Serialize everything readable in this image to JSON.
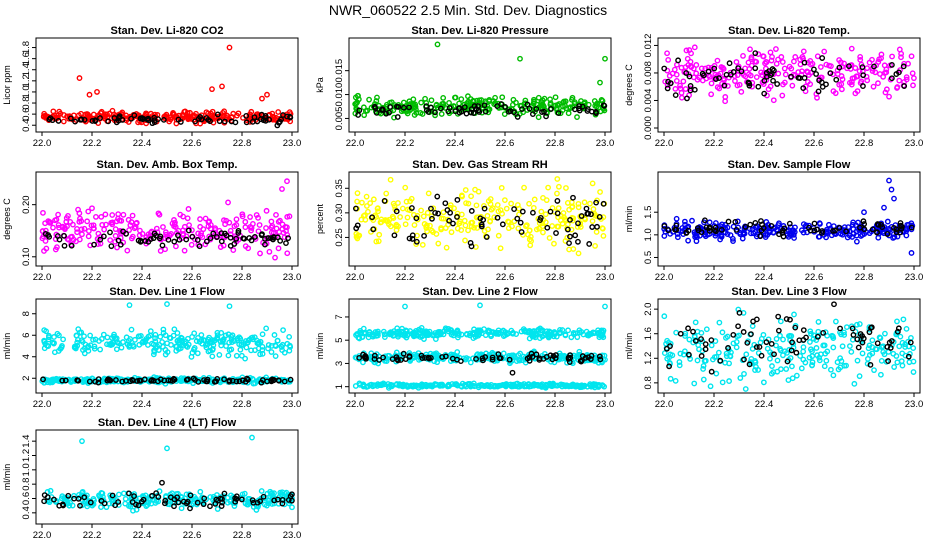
{
  "figure": {
    "title": "NWR_060522  2.5 Min. Std. Dev. Diagnostics"
  },
  "chart_data": [
    {
      "type": "scatter",
      "title": "Stan. Dev. Li-820 CO2",
      "xlabel": "",
      "ylabel": "Licor ppm",
      "xlim": [
        22.0,
        23.0
      ],
      "ylim": [
        0.35,
        1.9
      ],
      "xticks": [
        "22.0",
        "22.2",
        "22.4",
        "22.6",
        "22.8",
        "23.0"
      ],
      "yticks": [
        "0.4",
        "0.6",
        "0.8",
        "1.0",
        "1.2",
        "1.4",
        "1.6",
        "1.8"
      ],
      "grid": false,
      "legend": "none",
      "series": [
        {
          "color": "#ff0000",
          "base": 0.55,
          "spread": 0.06,
          "outliers": [
            [
              22.15,
              1.25
            ],
            [
              22.19,
              0.95
            ],
            [
              22.22,
              1.0
            ],
            [
              22.68,
              1.05
            ],
            [
              22.72,
              1.1
            ],
            [
              22.75,
              1.8
            ],
            [
              22.9,
              0.95
            ],
            [
              22.88,
              0.88
            ]
          ]
        },
        {
          "color": "#000000",
          "base": 0.5,
          "spread": 0.05,
          "outliers": []
        }
      ]
    },
    {
      "type": "scatter",
      "title": "Stan. Dev. Li-820 Pressure",
      "xlabel": "",
      "ylabel": "kPa",
      "xlim": [
        22.0,
        23.0
      ],
      "ylim": [
        0.003,
        0.021
      ],
      "xticks": [
        "22.0",
        "22.2",
        "22.4",
        "22.6",
        "22.8",
        "23.0"
      ],
      "yticks": [
        "0.005",
        "0.010",
        "0.015"
      ],
      "grid": false,
      "legend": "none",
      "series": [
        {
          "color": "#00bb00",
          "base": 0.0075,
          "spread": 0.0012,
          "outliers": [
            [
              22.33,
              0.0205
            ],
            [
              22.66,
              0.0175
            ],
            [
              22.98,
              0.0125
            ],
            [
              23.0,
              0.0175
            ]
          ]
        },
        {
          "color": "#000000",
          "base": 0.0068,
          "spread": 0.0008,
          "outliers": []
        }
      ]
    },
    {
      "type": "scatter",
      "title": "Stan. Dev. Li-820 Temp.",
      "xlabel": "",
      "ylabel": "degrees C",
      "xlim": [
        22.0,
        23.0
      ],
      "ylim": [
        0.0,
        0.0125
      ],
      "xticks": [
        "22.0",
        "22.2",
        "22.4",
        "22.6",
        "22.8",
        "23.0"
      ],
      "yticks": [
        "0.000",
        "0.004",
        "0.008",
        "0.012"
      ],
      "grid": false,
      "legend": "none",
      "series": [
        {
          "color": "#ff00ff",
          "base": 0.008,
          "spread": 0.002,
          "outliers": []
        },
        {
          "color": "#000000",
          "base": 0.0075,
          "spread": 0.0015,
          "outliers": []
        }
      ]
    },
    {
      "type": "scatter",
      "title": "Stan. Dev. Amb. Box Temp.",
      "xlabel": "",
      "ylabel": "degrees C",
      "xlim": [
        22.0,
        23.0
      ],
      "ylim": [
        0.09,
        0.255
      ],
      "xticks": [
        "22.0",
        "22.2",
        "22.4",
        "22.6",
        "22.8",
        "23.0"
      ],
      "yticks": [
        "0.10",
        "0.20"
      ],
      "grid": false,
      "legend": "none",
      "series": [
        {
          "color": "#ff00ff",
          "base": 0.15,
          "spread": 0.025,
          "outliers": [
            [
              22.98,
              0.245
            ],
            [
              22.96,
              0.23
            ]
          ]
        },
        {
          "color": "#000000",
          "base": 0.135,
          "spread": 0.01,
          "outliers": []
        }
      ]
    },
    {
      "type": "scatter",
      "title": "Stan. Dev. Gas Stream RH",
      "xlabel": "",
      "ylabel": "percent",
      "xlim": [
        22.0,
        23.0
      ],
      "ylim": [
        0.2,
        0.375
      ],
      "xticks": [
        "22.0",
        "22.2",
        "22.4",
        "22.6",
        "22.8",
        "23.0"
      ],
      "yticks": [
        "0.25",
        "0.30",
        "0.35"
      ],
      "grid": false,
      "legend": "none",
      "series": [
        {
          "color": "#ffff00",
          "base": 0.29,
          "spread": 0.035,
          "outliers": []
        },
        {
          "color": "#000000",
          "base": 0.29,
          "spread": 0.03,
          "outliers": []
        }
      ]
    },
    {
      "type": "scatter",
      "title": "Stan. Dev. Sample Flow",
      "xlabel": "",
      "ylabel": "ml/min",
      "xlim": [
        22.0,
        23.0
      ],
      "ylim": [
        0.4,
        2.3
      ],
      "xticks": [
        "22.0",
        "22.2",
        "22.4",
        "22.6",
        "22.8",
        "23.0"
      ],
      "yticks": [
        "0.5",
        "1.0",
        "1.5"
      ],
      "grid": false,
      "legend": "none",
      "series": [
        {
          "color": "#0000ee",
          "base": 1.1,
          "spread": 0.12,
          "outliers": [
            [
              22.9,
              2.2
            ],
            [
              22.91,
              2.0
            ],
            [
              22.92,
              1.8
            ],
            [
              22.88,
              1.6
            ],
            [
              22.8,
              1.5
            ],
            [
              22.99,
              0.6
            ]
          ]
        },
        {
          "color": "#000000",
          "base": 1.15,
          "spread": 0.1,
          "outliers": []
        }
      ]
    },
    {
      "type": "scatter",
      "title": "Stan. Dev. Line 1 Flow",
      "xlabel": "",
      "ylabel": "ml/min",
      "xlim": [
        22.0,
        23.0
      ],
      "ylim": [
        1.0,
        9.0
      ],
      "xticks": [
        "22.0",
        "22.2",
        "22.4",
        "22.6",
        "22.8",
        "23.0"
      ],
      "yticks": [
        "2",
        "4",
        "6",
        "8"
      ],
      "grid": false,
      "legend": "none",
      "series": [
        {
          "color": "#00e5ee",
          "base": 5.3,
          "spread": 0.7,
          "outliers": [
            [
              22.35,
              8.8
            ],
            [
              22.5,
              8.9
            ],
            [
              22.75,
              8.7
            ]
          ]
        },
        {
          "color": "#00e5ee",
          "base": 1.8,
          "spread": 0.15,
          "outliers": []
        },
        {
          "color": "#000000",
          "base": 1.8,
          "spread": 0.12,
          "outliers": []
        }
      ]
    },
    {
      "type": "scatter",
      "title": "Stan. Dev. Line 2 Flow",
      "xlabel": "",
      "ylabel": "ml/min",
      "xlim": [
        22.0,
        23.0
      ],
      "ylim": [
        0.8,
        8.2
      ],
      "xticks": [
        "22.0",
        "22.2",
        "22.4",
        "22.6",
        "22.8",
        "23.0"
      ],
      "yticks": [
        "1",
        "3",
        "5",
        "7"
      ],
      "grid": false,
      "legend": "none",
      "series": [
        {
          "color": "#00e5ee",
          "base": 5.6,
          "spread": 0.25,
          "outliers": [
            [
              22.2,
              7.9
            ],
            [
              22.5,
              8.0
            ],
            [
              23.0,
              7.9
            ]
          ]
        },
        {
          "color": "#00e5ee",
          "base": 3.5,
          "spread": 0.25,
          "outliers": []
        },
        {
          "color": "#00e5ee",
          "base": 1.1,
          "spread": 0.1,
          "outliers": []
        },
        {
          "color": "#000000",
          "base": 3.5,
          "spread": 0.2,
          "outliers": [
            [
              22.63,
              2.2
            ]
          ]
        }
      ]
    },
    {
      "type": "scatter",
      "title": "Stan. Dev. Line 3 Flow",
      "xlabel": "",
      "ylabel": "ml/min",
      "xlim": [
        22.0,
        23.0
      ],
      "ylim": [
        0.7,
        2.1
      ],
      "xticks": [
        "22.0",
        "22.2",
        "22.4",
        "22.6",
        "22.8",
        "23.0"
      ],
      "yticks": [
        "0.8",
        "1.2",
        "1.6",
        "2.0"
      ],
      "grid": false,
      "legend": "none",
      "series": [
        {
          "color": "#00e5ee",
          "base": 1.35,
          "spread": 0.32,
          "outliers": []
        },
        {
          "color": "#000000",
          "base": 1.5,
          "spread": 0.25,
          "outliers": [
            [
              22.68,
              2.08
            ]
          ]
        }
      ]
    },
    {
      "type": "scatter",
      "title": "Stan. Dev. Line 4 (LT) Flow",
      "xlabel": "",
      "ylabel": "ml/min",
      "xlim": [
        22.0,
        23.0
      ],
      "ylim": [
        0.3,
        1.5
      ],
      "xticks": [
        "22.0",
        "22.2",
        "22.4",
        "22.6",
        "22.8",
        "23.0"
      ],
      "yticks": [
        "0.4",
        "0.6",
        "0.8",
        "1.0",
        "1.2",
        "1.4"
      ],
      "grid": false,
      "legend": "none",
      "series": [
        {
          "color": "#00e5ee",
          "base": 0.58,
          "spread": 0.07,
          "outliers": [
            [
              22.16,
              1.4
            ],
            [
              22.5,
              1.3
            ],
            [
              22.84,
              1.45
            ]
          ]
        },
        {
          "color": "#000000",
          "base": 0.58,
          "spread": 0.06,
          "outliers": [
            [
              22.48,
              0.82
            ]
          ]
        }
      ]
    }
  ]
}
